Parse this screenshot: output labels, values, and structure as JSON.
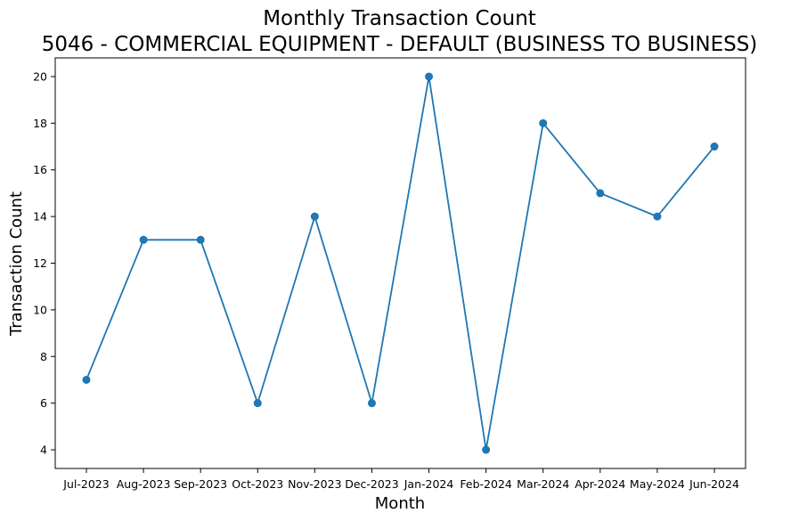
{
  "chart_data": {
    "type": "line",
    "title": "Monthly Transaction Count",
    "subtitle": "5046 - COMMERCIAL EQUIPMENT - DEFAULT (BUSINESS TO BUSINESS)",
    "xlabel": "Month",
    "ylabel": "Transaction Count",
    "categories": [
      "Jul-2023",
      "Aug-2023",
      "Sep-2023",
      "Oct-2023",
      "Nov-2023",
      "Dec-2023",
      "Jan-2024",
      "Feb-2024",
      "Mar-2024",
      "Apr-2024",
      "May-2024",
      "Jun-2024"
    ],
    "values": [
      7,
      13,
      13,
      6,
      14,
      6,
      20,
      4,
      18,
      15,
      14,
      17
    ],
    "yticks": [
      4,
      6,
      8,
      10,
      12,
      14,
      16,
      18,
      20
    ],
    "ylim": [
      3.2,
      20.8
    ],
    "grid": false,
    "series_color": "#1f77b4",
    "marker": "circle"
  }
}
